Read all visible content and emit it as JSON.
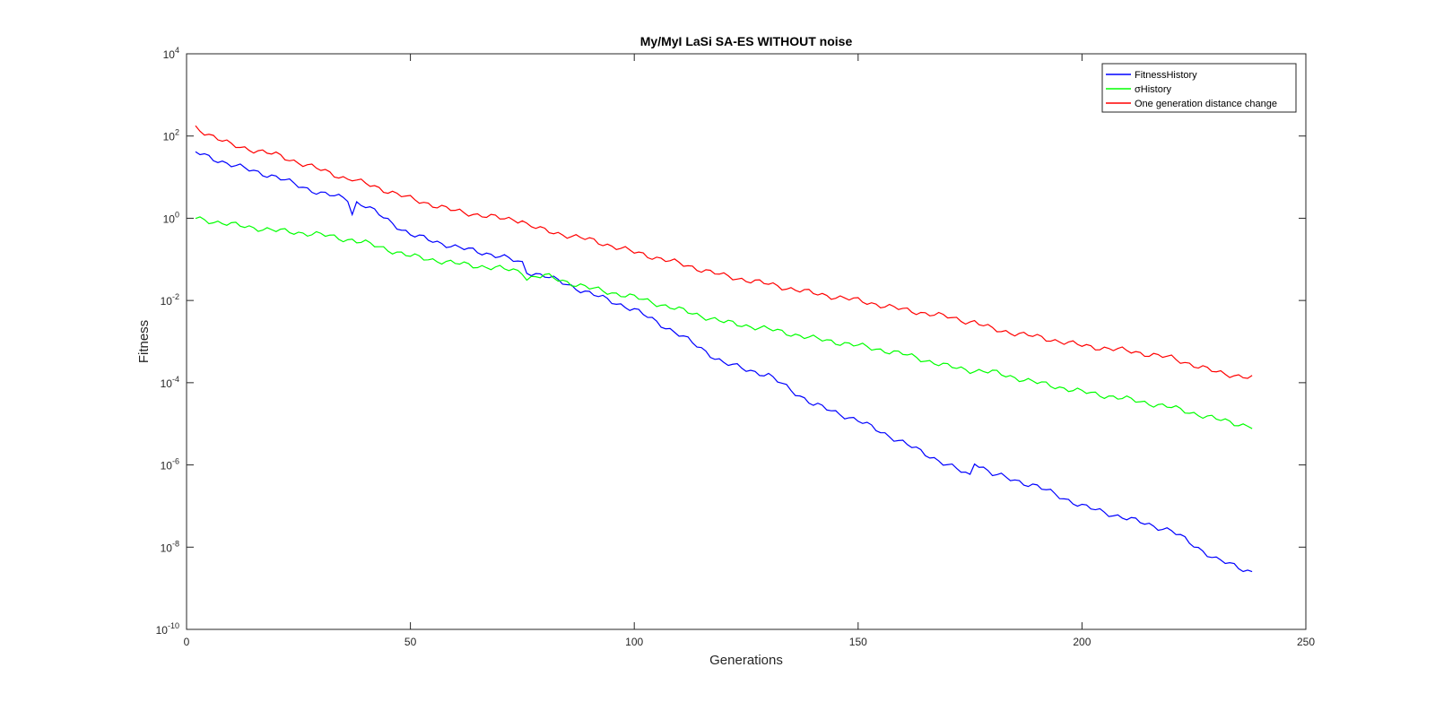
{
  "chart_data": {
    "type": "line",
    "title": "My/MyI LaSi SA-ES WITHOUT noise",
    "xlabel": "Generations",
    "ylabel": "Fitness",
    "xlim": [
      0,
      250
    ],
    "ylim": [
      1e-10,
      10000.0
    ],
    "yscale": "log",
    "grid": false,
    "legend_position": "top-right",
    "x_ticks": [
      "0",
      "50",
      "100",
      "150",
      "200",
      "250"
    ],
    "x_tick_values": [
      0,
      50,
      100,
      150,
      200,
      250
    ],
    "y_tick_exponents": [
      "-10",
      "-8",
      "-6",
      "-4",
      "-2",
      "0",
      "2",
      "4"
    ],
    "y_tick_values": [
      -10,
      -8,
      -6,
      -4,
      -2,
      0,
      2,
      4
    ],
    "y_tick_base": "10",
    "x": [
      2,
      10,
      20,
      30,
      36,
      37,
      38,
      40,
      50,
      60,
      70,
      75,
      76,
      80,
      90,
      100,
      110,
      120,
      130,
      140,
      150,
      160,
      170,
      175,
      176,
      180,
      190,
      200,
      210,
      220,
      230,
      238
    ],
    "series": [
      {
        "name": "FitnessHistory",
        "color": "#0000ff",
        "values": [
          40,
          20,
          10,
          4,
          3,
          1.3,
          2.4,
          2,
          0.4,
          0.2,
          0.12,
          0.08,
          0.05,
          0.04,
          0.015,
          0.006,
          0.0015,
          0.0003,
          0.00015,
          3e-05,
          1.2e-05,
          3.5e-06,
          1e-06,
          5.5e-07,
          1.2e-06,
          6e-07,
          3e-07,
          1e-07,
          5e-08,
          2.5e-08,
          5e-09,
          2.5e-09
        ]
      },
      {
        "name": "σHistory",
        "color": "#00ff00",
        "values": [
          1.0,
          0.7,
          0.5,
          0.4,
          0.3,
          0.3,
          0.28,
          0.25,
          0.12,
          0.08,
          0.06,
          0.05,
          0.035,
          0.04,
          0.02,
          0.012,
          0.006,
          0.003,
          0.002,
          0.0012,
          0.0008,
          0.0005,
          0.00025,
          0.0002,
          0.0002,
          0.00018,
          0.0001,
          6e-05,
          4e-05,
          2.5e-05,
          1.3e-05,
          8.5e-06
        ]
      },
      {
        "name": "One generation distance change",
        "color": "#ff0000",
        "values": [
          160,
          60,
          35,
          15,
          9,
          9,
          8,
          7,
          3,
          1.5,
          1.0,
          0.9,
          0.7,
          0.5,
          0.3,
          0.15,
          0.08,
          0.04,
          0.025,
          0.015,
          0.01,
          0.006,
          0.004,
          0.003,
          0.003,
          0.002,
          0.0013,
          0.0008,
          0.0006,
          0.0004,
          0.00018,
          0.00013
        ]
      }
    ]
  }
}
